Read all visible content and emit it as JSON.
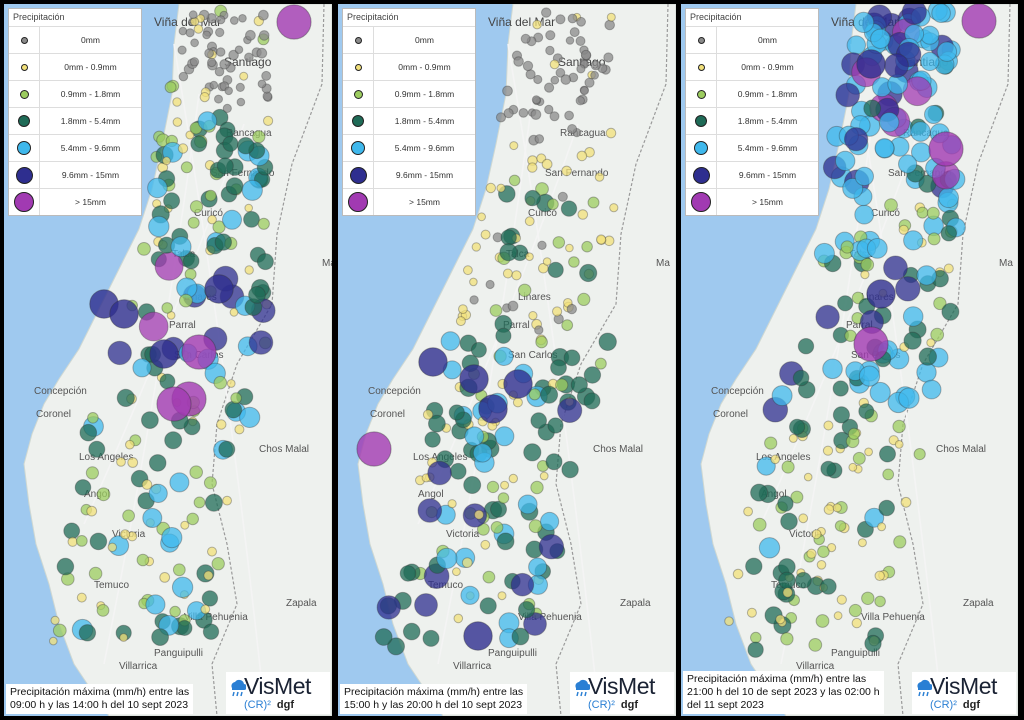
{
  "legend": {
    "title": "Precipitación",
    "items": [
      {
        "label": "0mm",
        "color": "#8a8a8a",
        "size": 5
      },
      {
        "label": "0mm - 0.9mm",
        "color": "#f1e07a",
        "size": 5
      },
      {
        "label": "0.9mm - 1.8mm",
        "color": "#9ccc5f",
        "size": 7
      },
      {
        "label": "1.8mm - 5.4mm",
        "color": "#1f6b57",
        "size": 10
      },
      {
        "label": "5.4mm - 9.6mm",
        "color": "#3fb8ec",
        "size": 12
      },
      {
        "label": "9.6mm - 15mm",
        "color": "#2e2e8f",
        "size": 15
      },
      {
        "label": "> 15mm",
        "color": "#a13ab2",
        "size": 18
      }
    ]
  },
  "places": [
    "Viña del Mar",
    "Santiago",
    "Rancagua",
    "San Fernando",
    "Curicó",
    "Talca",
    "Linares",
    "Parral",
    "San Carlos",
    "Concepción",
    "Coronel",
    "Chos Malal",
    "Los Angeles",
    "Angol",
    "Victoria",
    "Temuco",
    "Zapala",
    "Villa Pehuenia",
    "Villarrica",
    "Panguipulli",
    "Ma"
  ],
  "panels": [
    {
      "caption_line1": "Precipitación máxima (mm/h) entre las",
      "caption_line2": "09:00 h y las 14:00 h del 10 sept 2023",
      "caption_line3": ""
    },
    {
      "caption_line1": "Precipitación máxima (mm/h) entre las",
      "caption_line2": "15:00 h y las 20:00 h del 10 sept 2023",
      "caption_line3": ""
    },
    {
      "caption_line1": "Precipitación máxima (mm/h) entre las",
      "caption_line2": "21:00 h del 10 de sept 2023 y las 02:00 h",
      "caption_line3": "del 11 sept 2023"
    }
  ],
  "brand": {
    "name": "VisMet",
    "sub_cr": "(CR)²",
    "sub_dgf": "dgf"
  }
}
